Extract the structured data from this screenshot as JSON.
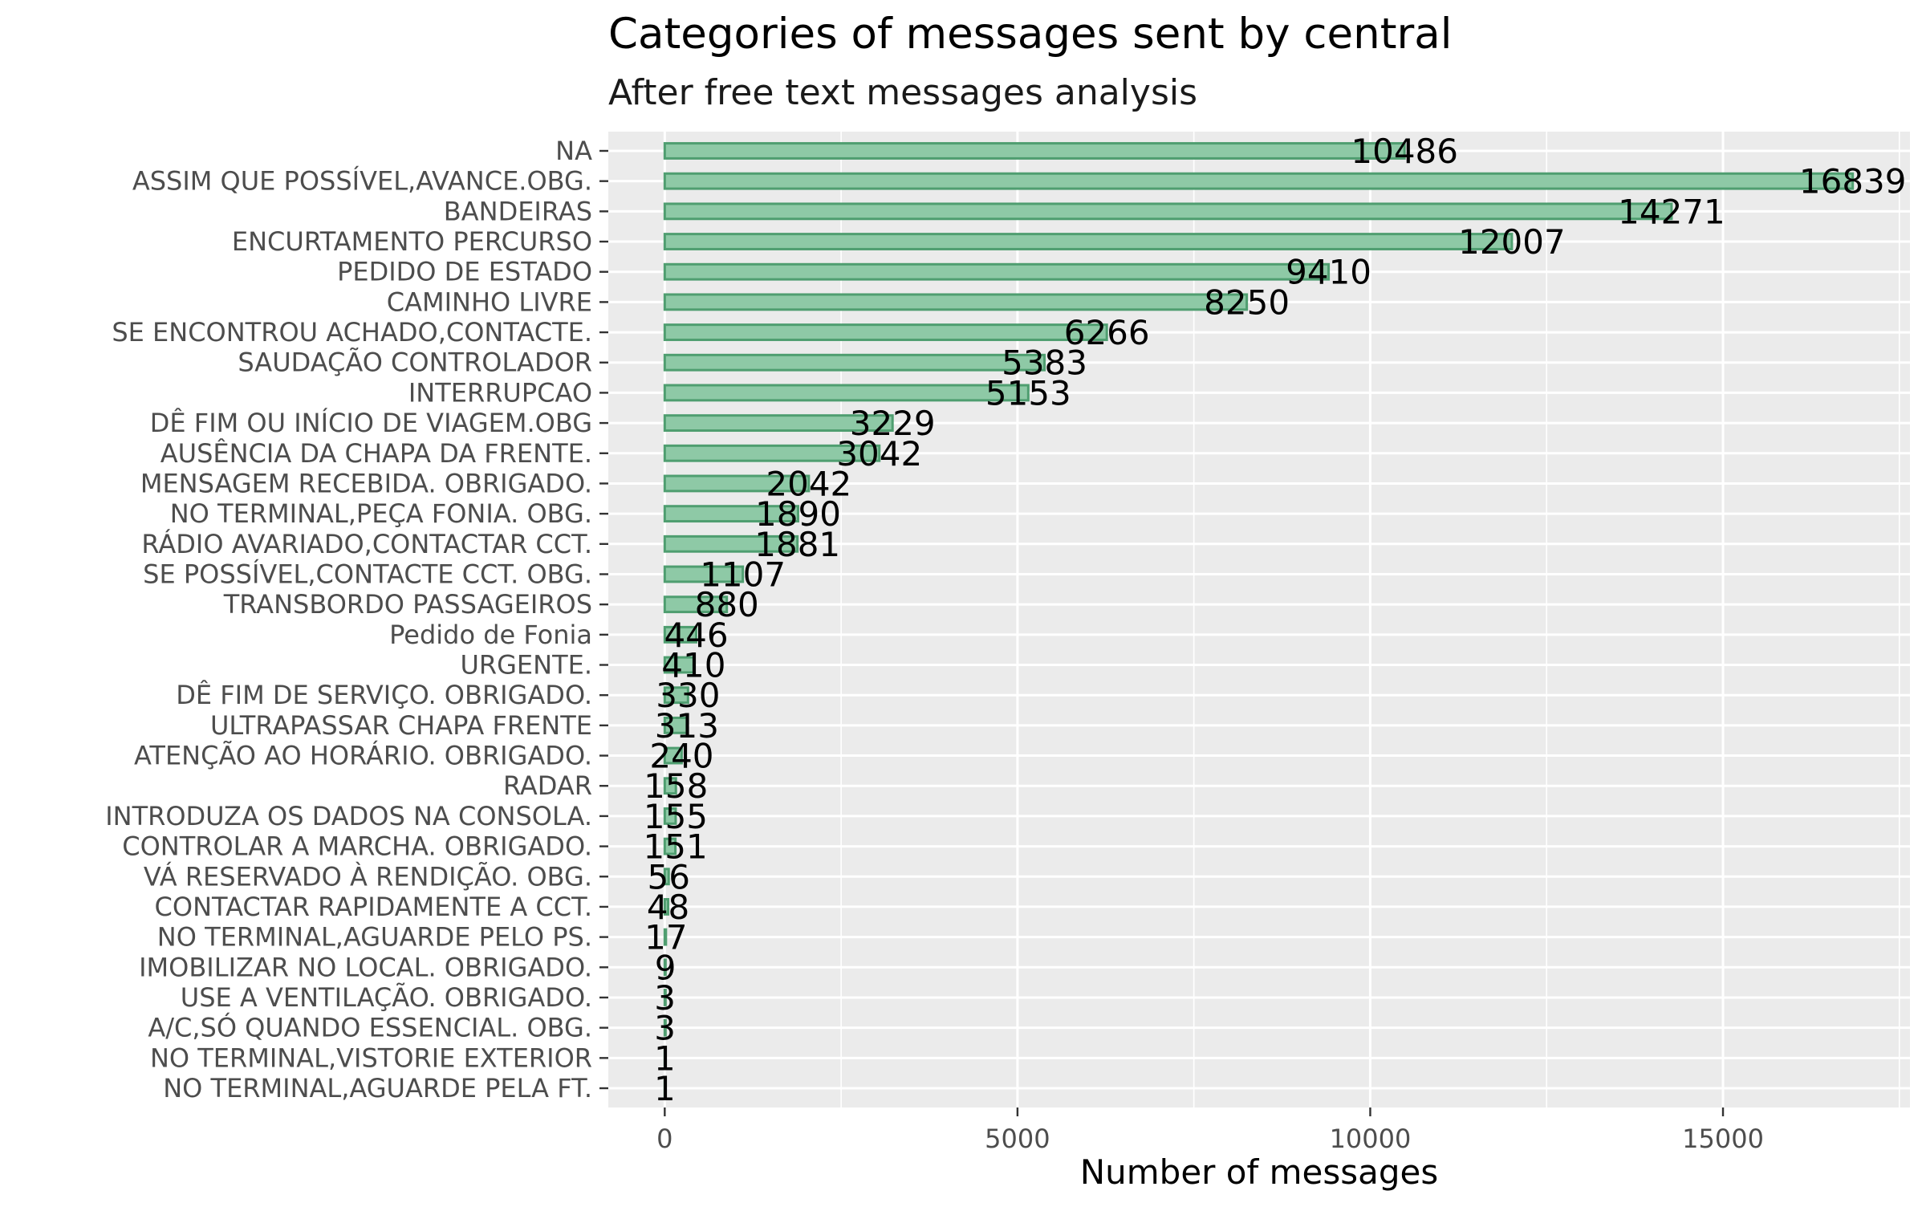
{
  "chart_data": {
    "type": "bar",
    "orientation": "horizontal",
    "title": "Categories of messages sent by central",
    "subtitle": "After free text messages analysis",
    "xlabel": "Number of messages",
    "ylabel": "",
    "xlim": [
      -800,
      17650
    ],
    "x_ticks": [
      0,
      5000,
      10000,
      15000
    ],
    "x_tick_labels": [
      "0",
      "5000",
      "10000",
      "15000"
    ],
    "grid": true,
    "legend": "none",
    "colors": {
      "panel": "#ebebeb",
      "grid": "#ffffff",
      "bar_fill": "#8ec9a6",
      "bar_stroke": "#4f9e70"
    },
    "categories": [
      "NA",
      "ASSIM QUE POSSÍVEL,AVANCE.OBG.",
      "BANDEIRAS",
      "ENCURTAMENTO PERCURSO",
      "PEDIDO DE ESTADO",
      "CAMINHO LIVRE",
      "SE ENCONTROU ACHADO,CONTACTE.",
      "SAUDAÇÃO CONTROLADOR",
      "INTERRUPCAO",
      "DÊ FIM OU INÍCIO DE VIAGEM.OBG",
      "AUSÊNCIA DA CHAPA DA FRENTE.",
      "MENSAGEM RECEBIDA. OBRIGADO.",
      "NO TERMINAL,PEÇA FONIA. OBG.",
      "RÁDIO AVARIADO,CONTACTAR CCT.",
      "SE POSSÍVEL,CONTACTE CCT. OBG.",
      "TRANSBORDO PASSAGEIROS",
      "Pedido de Fonia",
      "URGENTE.",
      "DÊ FIM DE SERVIÇO. OBRIGADO.",
      "ULTRAPASSAR CHAPA FRENTE",
      "ATENÇÃO AO HORÁRIO. OBRIGADO.",
      "RADAR",
      "INTRODUZA OS DADOS NA CONSOLA.",
      "CONTROLAR A MARCHA. OBRIGADO.",
      "VÁ RESERVADO À RENDIÇÃO. OBG.",
      "CONTACTAR RAPIDAMENTE A CCT.",
      "NO TERMINAL,AGUARDE PELO PS.",
      "IMOBILIZAR NO LOCAL. OBRIGADO.",
      "USE A VENTILAÇÃO. OBRIGADO.",
      "A/C,SÓ QUANDO ESSENCIAL. OBG.",
      "NO TERMINAL,VISTORIE EXTERIOR",
      "NO TERMINAL,AGUARDE PELA FT."
    ],
    "values": [
      10486,
      16839,
      14271,
      12007,
      9410,
      8250,
      6266,
      5383,
      5153,
      3229,
      3042,
      2042,
      1890,
      1881,
      1107,
      880,
      446,
      410,
      330,
      313,
      240,
      158,
      155,
      151,
      56,
      48,
      17,
      9,
      3,
      3,
      1,
      1
    ],
    "value_labels": [
      "10486",
      "16839",
      "14271",
      "12007",
      "9410",
      "8250",
      "6266",
      "5383",
      "5153",
      "3229",
      "3042",
      "2042",
      "1890",
      "1881",
      "1107",
      "880",
      "446",
      "410",
      "330",
      "313",
      "240",
      "158",
      "155",
      "151",
      "56",
      "48",
      "17",
      "9",
      "3",
      "3",
      "1",
      "1"
    ]
  }
}
